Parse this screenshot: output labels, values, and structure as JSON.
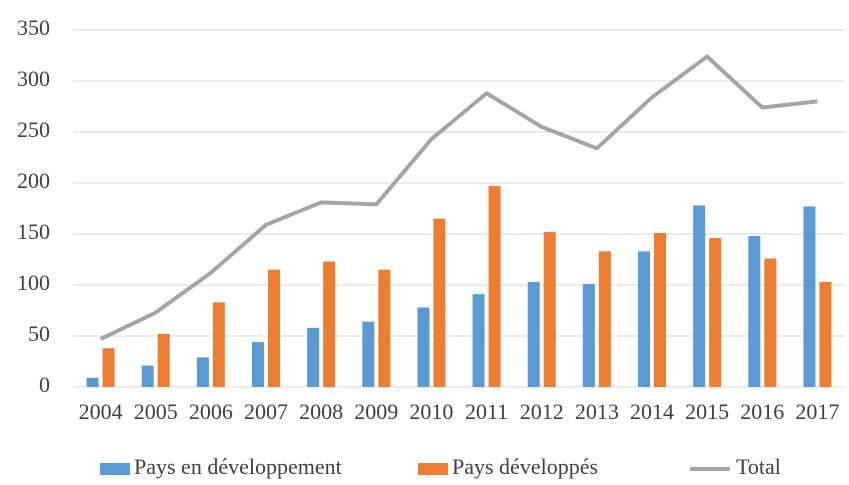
{
  "chart_data": {
    "type": "bar",
    "categories": [
      "2004",
      "2005",
      "2006",
      "2007",
      "2008",
      "2009",
      "2010",
      "2011",
      "2012",
      "2013",
      "2014",
      "2015",
      "2016",
      "2017"
    ],
    "series": [
      {
        "name": "Pays en développement",
        "type": "bar",
        "color": "#5b9bd5",
        "values": [
          9,
          21,
          29,
          44,
          58,
          64,
          78,
          91,
          103,
          101,
          133,
          178,
          148,
          177
        ]
      },
      {
        "name": "Pays développés",
        "type": "bar",
        "color": "#ed7d31",
        "values": [
          38,
          52,
          83,
          115,
          123,
          115,
          165,
          197,
          152,
          133,
          151,
          146,
          126,
          103
        ]
      },
      {
        "name": "Total",
        "type": "line",
        "color": "#a5a5a5",
        "values": [
          47,
          73,
          112,
          159,
          181,
          179,
          243,
          288,
          255,
          234,
          284,
          324,
          274,
          280
        ]
      }
    ],
    "ylim": [
      0,
      350
    ],
    "yticks": [
      0,
      50,
      100,
      150,
      200,
      250,
      300,
      350
    ],
    "grid": true,
    "legend": "bottom"
  }
}
